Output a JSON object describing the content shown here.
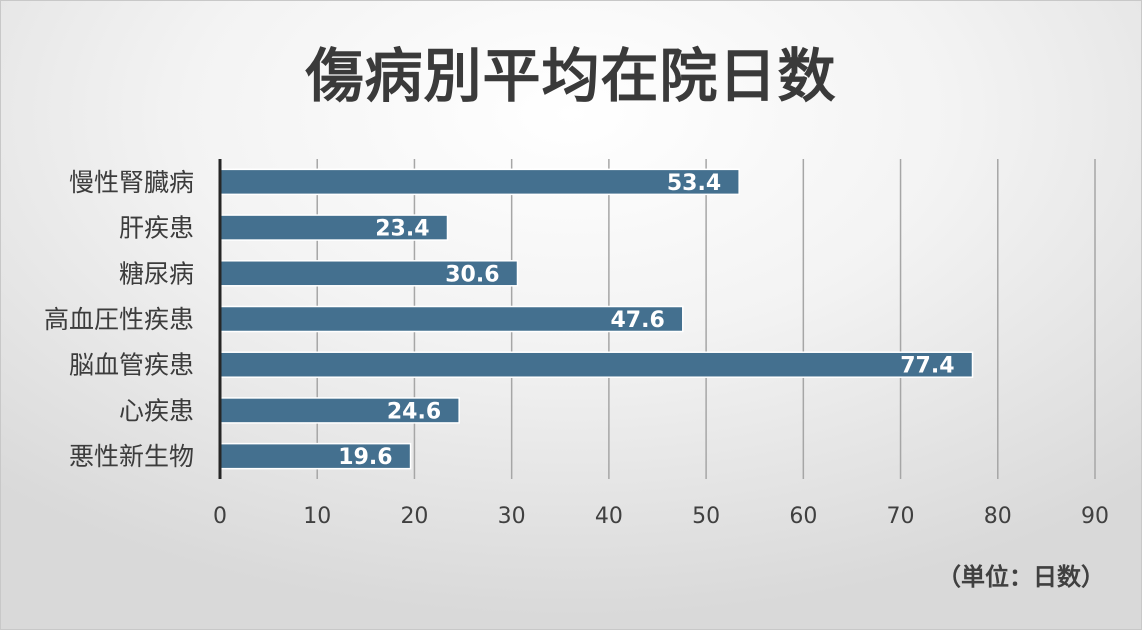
{
  "chart_data": {
    "type": "bar",
    "orientation": "horizontal",
    "title": "傷病別平均在院日数",
    "unit_note": "（単位：日数）",
    "categories": [
      "慢性腎臓病",
      "肝疾患",
      "糖尿病",
      "高血圧性疾患",
      "脳血管疾患",
      "心疾患",
      "悪性新生物"
    ],
    "values": [
      53.4,
      23.4,
      30.6,
      47.6,
      77.4,
      24.6,
      19.6
    ],
    "data_labels": [
      "53.4",
      "23.4",
      "30.6",
      "47.6",
      "77.4",
      "24.6",
      "19.6"
    ],
    "xlim": [
      0,
      90
    ],
    "x_ticks": [
      "0",
      "10",
      "20",
      "30",
      "40",
      "50",
      "60",
      "70",
      "80",
      "90"
    ],
    "grid": "vertical",
    "bar_color": "#44708f",
    "legend": "none"
  }
}
